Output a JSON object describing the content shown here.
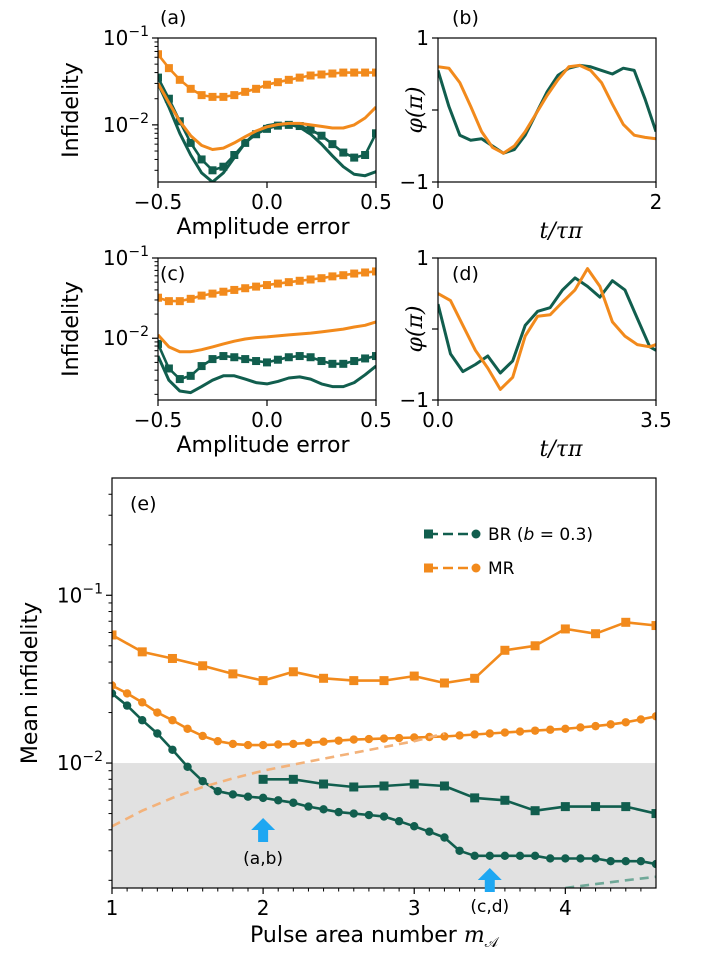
{
  "colors": {
    "green": "#115e4e",
    "orange": "#f28a1c",
    "orange_dashed": "#f3b27a",
    "green_dashed": "#6fa898",
    "shade": "#e1e1e1",
    "arrow": "#1ea7f2"
  },
  "chart_data": [
    {
      "panel": "(a)",
      "type": "line",
      "xlabel": "Amplitude error",
      "ylabel": "Infidelity",
      "yscale": "log",
      "xlim": [
        -0.5,
        0.5
      ],
      "ylim": [
        0.0022,
        0.1
      ],
      "xticks": [
        "−0.5",
        "0.0",
        "0.5"
      ],
      "yticks": [
        {
          "v": 0.1,
          "base": "10",
          "exp": "−1"
        },
        {
          "v": 0.01,
          "base": "10",
          "exp": "−2"
        }
      ],
      "series": [
        {
          "color": "green",
          "style": "line",
          "x": [
            -0.5,
            -0.45,
            -0.4,
            -0.35,
            -0.3,
            -0.25,
            -0.2,
            -0.15,
            -0.1,
            -0.05,
            0.0,
            0.05,
            0.1,
            0.15,
            0.2,
            0.25,
            0.3,
            0.35,
            0.4,
            0.45,
            0.5
          ],
          "y": [
            0.03,
            0.016,
            0.008,
            0.0045,
            0.0028,
            0.0022,
            0.0028,
            0.0042,
            0.0062,
            0.0082,
            0.0098,
            0.0103,
            0.0102,
            0.0094,
            0.0078,
            0.006,
            0.0044,
            0.0033,
            0.0027,
            0.0026,
            0.0029
          ]
        },
        {
          "color": "green",
          "style": "squares",
          "x": [
            -0.5,
            -0.45,
            -0.4,
            -0.35,
            -0.3,
            -0.25,
            -0.2,
            -0.15,
            -0.1,
            -0.05,
            0.0,
            0.05,
            0.1,
            0.15,
            0.2,
            0.25,
            0.3,
            0.35,
            0.4,
            0.45,
            0.5
          ],
          "y": [
            0.035,
            0.02,
            0.011,
            0.0062,
            0.004,
            0.003,
            0.0033,
            0.0045,
            0.0062,
            0.0078,
            0.009,
            0.0098,
            0.01,
            0.0097,
            0.0088,
            0.0075,
            0.006,
            0.0048,
            0.0042,
            0.0045,
            0.008
          ]
        },
        {
          "color": "orange",
          "style": "line",
          "x": [
            -0.5,
            -0.45,
            -0.4,
            -0.35,
            -0.3,
            -0.25,
            -0.2,
            -0.15,
            -0.1,
            -0.05,
            0.0,
            0.05,
            0.1,
            0.15,
            0.2,
            0.25,
            0.3,
            0.35,
            0.4,
            0.45,
            0.5
          ],
          "y": [
            0.03,
            0.018,
            0.011,
            0.0075,
            0.0058,
            0.0052,
            0.0054,
            0.0062,
            0.0073,
            0.0085,
            0.0095,
            0.0101,
            0.0104,
            0.0104,
            0.01,
            0.0096,
            0.0092,
            0.0092,
            0.01,
            0.012,
            0.016
          ]
        },
        {
          "color": "orange",
          "style": "squares",
          "x": [
            -0.5,
            -0.45,
            -0.4,
            -0.35,
            -0.3,
            -0.25,
            -0.2,
            -0.15,
            -0.1,
            -0.05,
            0.0,
            0.05,
            0.1,
            0.15,
            0.2,
            0.25,
            0.3,
            0.35,
            0.4,
            0.45,
            0.5
          ],
          "y": [
            0.065,
            0.045,
            0.033,
            0.026,
            0.022,
            0.021,
            0.021,
            0.022,
            0.024,
            0.026,
            0.029,
            0.031,
            0.033,
            0.035,
            0.037,
            0.038,
            0.039,
            0.04,
            0.04,
            0.04,
            0.04
          ]
        }
      ]
    },
    {
      "panel": "(b)",
      "type": "line",
      "xlabel": "t/τπ",
      "ylabel": "φ(π)",
      "xlim": [
        0,
        2
      ],
      "ylim": [
        -1,
        1
      ],
      "xticks": [
        "0",
        "2"
      ],
      "yticks": [
        "1",
        "−1"
      ],
      "series": [
        {
          "color": "green",
          "style": "line",
          "x": [
            0,
            0.1,
            0.2,
            0.3,
            0.4,
            0.5,
            0.6,
            0.7,
            0.8,
            0.9,
            1.0,
            1.1,
            1.2,
            1.3,
            1.4,
            1.5,
            1.6,
            1.7,
            1.8,
            1.9,
            2.0
          ],
          "y": [
            0.55,
            0.05,
            -0.35,
            -0.42,
            -0.4,
            -0.5,
            -0.6,
            -0.55,
            -0.35,
            -0.05,
            0.25,
            0.48,
            0.58,
            0.62,
            0.6,
            0.55,
            0.5,
            0.58,
            0.55,
            0.15,
            -0.3
          ]
        },
        {
          "color": "orange",
          "style": "line",
          "x": [
            0,
            0.1,
            0.2,
            0.3,
            0.4,
            0.5,
            0.6,
            0.7,
            0.8,
            0.9,
            1.0,
            1.1,
            1.2,
            1.3,
            1.4,
            1.5,
            1.6,
            1.7,
            1.8,
            1.9,
            2.0
          ],
          "y": [
            0.6,
            0.58,
            0.38,
            0.05,
            -0.3,
            -0.52,
            -0.6,
            -0.5,
            -0.3,
            -0.05,
            0.2,
            0.42,
            0.6,
            0.62,
            0.55,
            0.38,
            0.08,
            -0.2,
            -0.35,
            -0.38,
            -0.4
          ]
        }
      ]
    },
    {
      "panel": "(c)",
      "type": "line",
      "xlabel": "Amplitude error",
      "ylabel": "Infidelity",
      "yscale": "log",
      "xlim": [
        -0.5,
        0.5
      ],
      "ylim": [
        0.0017,
        0.1
      ],
      "xticks": [
        "−0.5",
        "0.0",
        "0.5"
      ],
      "yticks": [
        {
          "v": 0.1,
          "base": "10",
          "exp": "−1"
        },
        {
          "v": 0.01,
          "base": "10",
          "exp": "−2"
        }
      ],
      "series": [
        {
          "color": "green",
          "style": "line",
          "x": [
            -0.5,
            -0.45,
            -0.4,
            -0.35,
            -0.3,
            -0.25,
            -0.2,
            -0.15,
            -0.1,
            -0.05,
            0.0,
            0.05,
            0.1,
            0.15,
            0.2,
            0.25,
            0.3,
            0.35,
            0.4,
            0.45,
            0.5
          ],
          "y": [
            0.006,
            0.003,
            0.0022,
            0.0021,
            0.0025,
            0.003,
            0.0034,
            0.0034,
            0.0031,
            0.0028,
            0.0027,
            0.0029,
            0.0032,
            0.0033,
            0.0031,
            0.0027,
            0.0025,
            0.0025,
            0.0028,
            0.0035,
            0.0045
          ]
        },
        {
          "color": "green",
          "style": "squares",
          "x": [
            -0.5,
            -0.45,
            -0.4,
            -0.35,
            -0.3,
            -0.25,
            -0.2,
            -0.15,
            -0.1,
            -0.05,
            0.0,
            0.05,
            0.1,
            0.15,
            0.2,
            0.25,
            0.3,
            0.35,
            0.4,
            0.45,
            0.5
          ],
          "y": [
            0.0085,
            0.0042,
            0.0031,
            0.0034,
            0.0045,
            0.0055,
            0.006,
            0.0058,
            0.0055,
            0.0052,
            0.005,
            0.0054,
            0.0058,
            0.006,
            0.0058,
            0.0052,
            0.0048,
            0.0048,
            0.0052,
            0.0056,
            0.006
          ]
        },
        {
          "color": "orange",
          "style": "line",
          "x": [
            -0.5,
            -0.45,
            -0.4,
            -0.35,
            -0.3,
            -0.25,
            -0.2,
            -0.15,
            -0.1,
            -0.05,
            0.0,
            0.05,
            0.1,
            0.15,
            0.2,
            0.25,
            0.3,
            0.35,
            0.4,
            0.45,
            0.5
          ],
          "y": [
            0.011,
            0.0078,
            0.0068,
            0.0068,
            0.0072,
            0.0078,
            0.0085,
            0.0092,
            0.0098,
            0.0102,
            0.0104,
            0.0107,
            0.011,
            0.0113,
            0.0116,
            0.012,
            0.0125,
            0.013,
            0.0138,
            0.0145,
            0.016
          ]
        },
        {
          "color": "orange",
          "style": "squares",
          "x": [
            -0.5,
            -0.45,
            -0.4,
            -0.35,
            -0.3,
            -0.25,
            -0.2,
            -0.15,
            -0.1,
            -0.05,
            0.0,
            0.05,
            0.1,
            0.15,
            0.2,
            0.25,
            0.3,
            0.35,
            0.4,
            0.45,
            0.5
          ],
          "y": [
            0.032,
            0.029,
            0.029,
            0.031,
            0.034,
            0.036,
            0.038,
            0.04,
            0.042,
            0.044,
            0.046,
            0.048,
            0.05,
            0.052,
            0.054,
            0.056,
            0.059,
            0.061,
            0.064,
            0.066,
            0.068
          ]
        }
      ]
    },
    {
      "panel": "(d)",
      "type": "line",
      "xlabel": "t/τπ",
      "ylabel": "φ(π)",
      "xlim": [
        0,
        3.5
      ],
      "ylim": [
        -1,
        1
      ],
      "xticks": [
        "0.0",
        "3.5"
      ],
      "yticks": [
        "1",
        "−1"
      ],
      "series": [
        {
          "color": "green",
          "style": "line",
          "x": [
            0,
            0.2,
            0.4,
            0.6,
            0.8,
            1.0,
            1.2,
            1.4,
            1.6,
            1.8,
            2.0,
            2.2,
            2.4,
            2.6,
            2.8,
            3.0,
            3.2,
            3.4,
            3.5
          ],
          "y": [
            0.35,
            -0.35,
            -0.6,
            -0.5,
            -0.38,
            -0.62,
            -0.45,
            0.05,
            0.25,
            0.3,
            0.55,
            0.72,
            0.6,
            0.45,
            0.68,
            0.55,
            0.15,
            -0.25,
            -0.3
          ]
        },
        {
          "color": "orange",
          "style": "line",
          "x": [
            0,
            0.2,
            0.4,
            0.6,
            0.8,
            1.0,
            1.2,
            1.4,
            1.6,
            1.8,
            2.0,
            2.2,
            2.4,
            2.6,
            2.8,
            3.0,
            3.2,
            3.4,
            3.5
          ],
          "y": [
            0.5,
            0.4,
            0.05,
            -0.3,
            -0.55,
            -0.85,
            -0.68,
            -0.1,
            0.18,
            0.2,
            0.38,
            0.55,
            0.85,
            0.6,
            0.1,
            -0.1,
            -0.22,
            -0.25,
            -0.22
          ]
        }
      ]
    },
    {
      "panel": "(e)",
      "type": "line",
      "xlabel": "Pulse area number",
      "xlabel_symbol": "m",
      "xlabel_sub": "𝒜",
      "ylabel": "Mean infidelity",
      "yscale": "log",
      "xlim": [
        1,
        4.6
      ],
      "ylim": [
        0.0018,
        0.5
      ],
      "xticks": [
        "1",
        "2",
        "3",
        "4"
      ],
      "yticks": [
        {
          "v": 0.1,
          "base": "10",
          "exp": "−1"
        },
        {
          "v": 0.01,
          "base": "10",
          "exp": "−2"
        }
      ],
      "shaded_region": {
        "y_from": 0.0018,
        "y_to": 0.01
      },
      "legend": [
        {
          "label_prefix": "BR (",
          "label_var": "b",
          "label_suffix": " = 0.3)",
          "color": "green"
        },
        {
          "label_prefix": "MR",
          "label_var": "",
          "label_suffix": "",
          "color": "orange"
        }
      ],
      "annotations": [
        {
          "text": "(a,b)",
          "x": 2.0
        },
        {
          "text": "(c,d)",
          "x": 3.5
        }
      ],
      "series": [
        {
          "color": "green",
          "style": "squares",
          "x": [
            2.0,
            2.2,
            2.4,
            2.6,
            2.8,
            3.0,
            3.2,
            3.4,
            3.6,
            3.8,
            4.0,
            4.2,
            4.4,
            4.6
          ],
          "y": [
            0.008,
            0.008,
            0.0075,
            0.0072,
            0.0073,
            0.0075,
            0.0073,
            0.0062,
            0.006,
            0.0052,
            0.0055,
            0.0055,
            0.0055,
            0.005
          ]
        },
        {
          "color": "green",
          "style": "circles",
          "x": [
            1.0,
            1.1,
            1.2,
            1.3,
            1.4,
            1.5,
            1.6,
            1.7,
            1.8,
            1.9,
            2.0,
            2.1,
            2.2,
            2.3,
            2.4,
            2.5,
            2.6,
            2.7,
            2.8,
            2.9,
            3.0,
            3.1,
            3.2,
            3.3,
            3.4,
            3.5,
            3.6,
            3.7,
            3.8,
            3.9,
            4.0,
            4.1,
            4.2,
            4.3,
            4.4,
            4.5,
            4.6
          ],
          "y": [
            0.026,
            0.022,
            0.018,
            0.015,
            0.012,
            0.0095,
            0.0078,
            0.0068,
            0.0065,
            0.0063,
            0.0062,
            0.006,
            0.0058,
            0.0055,
            0.0053,
            0.0051,
            0.005,
            0.0049,
            0.0048,
            0.0045,
            0.0042,
            0.0039,
            0.0036,
            0.003,
            0.0028,
            0.0028,
            0.0028,
            0.0028,
            0.0028,
            0.0027,
            0.0027,
            0.0027,
            0.0027,
            0.0026,
            0.0026,
            0.0026,
            0.0025
          ]
        },
        {
          "color": "orange",
          "style": "squares",
          "x": [
            1.0,
            1.2,
            1.4,
            1.6,
            1.8,
            2.0,
            2.2,
            2.4,
            2.6,
            2.8,
            3.0,
            3.2,
            3.4,
            3.6,
            3.8,
            4.0,
            4.2,
            4.4,
            4.6
          ],
          "y": [
            0.058,
            0.046,
            0.042,
            0.038,
            0.034,
            0.031,
            0.035,
            0.032,
            0.031,
            0.031,
            0.033,
            0.03,
            0.032,
            0.047,
            0.05,
            0.063,
            0.059,
            0.069,
            0.066
          ]
        },
        {
          "color": "orange",
          "style": "circles",
          "x": [
            1.0,
            1.1,
            1.2,
            1.3,
            1.4,
            1.5,
            1.6,
            1.7,
            1.8,
            1.9,
            2.0,
            2.1,
            2.2,
            2.3,
            2.4,
            2.5,
            2.6,
            2.7,
            2.8,
            2.9,
            3.0,
            3.1,
            3.2,
            3.3,
            3.4,
            3.5,
            3.6,
            3.7,
            3.8,
            3.9,
            4.0,
            4.1,
            4.2,
            4.3,
            4.4,
            4.5,
            4.6
          ],
          "y": [
            0.029,
            0.026,
            0.023,
            0.02,
            0.018,
            0.016,
            0.0145,
            0.0135,
            0.013,
            0.0128,
            0.0128,
            0.0129,
            0.013,
            0.0132,
            0.0134,
            0.0136,
            0.0138,
            0.0139,
            0.014,
            0.0141,
            0.0142,
            0.0143,
            0.0144,
            0.0146,
            0.0148,
            0.015,
            0.0152,
            0.0154,
            0.0156,
            0.0158,
            0.016,
            0.0163,
            0.0166,
            0.017,
            0.0175,
            0.0182,
            0.019
          ]
        },
        {
          "color": "orange_dashed",
          "style": "dashed",
          "x": [
            1.0,
            1.2,
            1.4,
            1.6,
            1.8,
            2.0,
            2.3,
            2.6,
            3.0,
            3.2
          ],
          "y": [
            0.0042,
            0.0052,
            0.0062,
            0.0072,
            0.0081,
            0.009,
            0.0102,
            0.0115,
            0.0135,
            0.015
          ]
        },
        {
          "color": "green_dashed",
          "style": "dashed",
          "x": [
            4.0,
            4.2,
            4.4,
            4.6
          ],
          "y": [
            0.0018,
            0.0019,
            0.002,
            0.0021
          ]
        }
      ]
    }
  ]
}
